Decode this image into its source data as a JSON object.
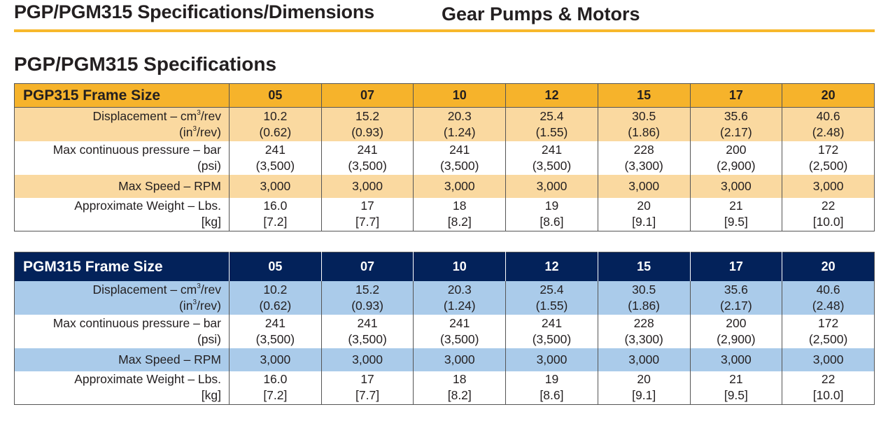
{
  "header": {
    "title": "PGP/PGM315 Specifications/Dimensions",
    "section": "Gear Pumps & Motors",
    "rule_color": "#f7b82c"
  },
  "subtitle": "PGP/PGM315 Specifications",
  "tables": [
    {
      "title": "PGP315 Frame Size",
      "header_color": "#f6b32b",
      "alt_row_color": "#fad9a0",
      "columns": [
        "05",
        "07",
        "10",
        "12",
        "15",
        "17",
        "20"
      ],
      "rows": [
        {
          "label": [
            "Displacement – cm³/rev",
            "(in³/rev)"
          ],
          "values": [
            [
              "10.2",
              "(0.62)"
            ],
            [
              "15.2",
              "(0.93)"
            ],
            [
              "20.3",
              "(1.24)"
            ],
            [
              "25.4",
              "(1.55)"
            ],
            [
              "30.5",
              "(1.86)"
            ],
            [
              "35.6",
              "(2.17)"
            ],
            [
              "40.6",
              "(2.48)"
            ]
          ]
        },
        {
          "label": [
            "Max continuous pressure – bar",
            "(psi)"
          ],
          "values": [
            [
              "241",
              "(3,500)"
            ],
            [
              "241",
              "(3,500)"
            ],
            [
              "241",
              "(3,500)"
            ],
            [
              "241",
              "(3,500)"
            ],
            [
              "228",
              "(3,300)"
            ],
            [
              "200",
              "(2,900)"
            ],
            [
              "172",
              "(2,500)"
            ]
          ]
        },
        {
          "label": [
            "Max Speed – RPM"
          ],
          "values": [
            [
              "3,000"
            ],
            [
              "3,000"
            ],
            [
              "3,000"
            ],
            [
              "3,000"
            ],
            [
              "3,000"
            ],
            [
              "3,000"
            ],
            [
              "3,000"
            ]
          ]
        },
        {
          "label": [
            "Approximate Weight – Lbs.",
            "[kg]"
          ],
          "values": [
            [
              "16.0",
              "[7.2]"
            ],
            [
              "17",
              "[7.7]"
            ],
            [
              "18",
              "[8.2]"
            ],
            [
              "19",
              "[8.6]"
            ],
            [
              "20",
              "[9.1]"
            ],
            [
              "21",
              "[9.5]"
            ],
            [
              "22",
              "[10.0]"
            ]
          ]
        }
      ]
    },
    {
      "title": "PGM315 Frame Size",
      "header_color": "#03225a",
      "alt_row_color": "#aacbea",
      "columns": [
        "05",
        "07",
        "10",
        "12",
        "15",
        "17",
        "20"
      ],
      "rows": [
        {
          "label": [
            "Displacement – cm³/rev",
            "(in³/rev)"
          ],
          "values": [
            [
              "10.2",
              "(0.62)"
            ],
            [
              "15.2",
              "(0.93)"
            ],
            [
              "20.3",
              "(1.24)"
            ],
            [
              "25.4",
              "(1.55)"
            ],
            [
              "30.5",
              "(1.86)"
            ],
            [
              "35.6",
              "(2.17)"
            ],
            [
              "40.6",
              "(2.48)"
            ]
          ]
        },
        {
          "label": [
            "Max continuous pressure – bar",
            "(psi)"
          ],
          "values": [
            [
              "241",
              "(3,500)"
            ],
            [
              "241",
              "(3,500)"
            ],
            [
              "241",
              "(3,500)"
            ],
            [
              "241",
              "(3,500)"
            ],
            [
              "228",
              "(3,300)"
            ],
            [
              "200",
              "(2,900)"
            ],
            [
              "172",
              "(2,500)"
            ]
          ]
        },
        {
          "label": [
            "Max Speed – RPM"
          ],
          "values": [
            [
              "3,000"
            ],
            [
              "3,000"
            ],
            [
              "3,000"
            ],
            [
              "3,000"
            ],
            [
              "3,000"
            ],
            [
              "3,000"
            ],
            [
              "3,000"
            ]
          ]
        },
        {
          "label": [
            "Approximate Weight – Lbs.",
            "[kg]"
          ],
          "values": [
            [
              "16.0",
              "[7.2]"
            ],
            [
              "17",
              "[7.7]"
            ],
            [
              "18",
              "[8.2]"
            ],
            [
              "19",
              "[8.6]"
            ],
            [
              "20",
              "[9.1]"
            ],
            [
              "21",
              "[9.5]"
            ],
            [
              "22",
              "[10.0]"
            ]
          ]
        }
      ]
    }
  ]
}
